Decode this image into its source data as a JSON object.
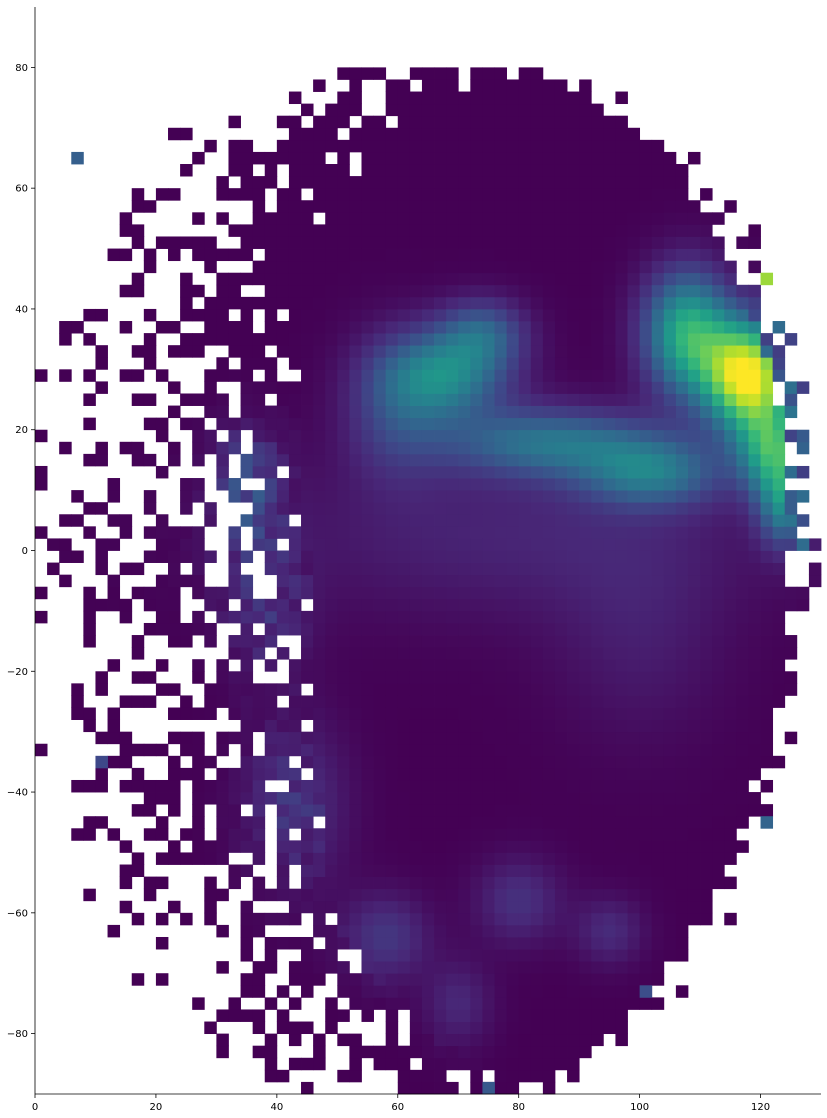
{
  "chart_data": {
    "type": "heatmap",
    "title": "",
    "xlabel": "",
    "ylabel": "",
    "colormap": "viridis",
    "colormap_stops": [
      "#440154",
      "#482878",
      "#3e4989",
      "#31688e",
      "#26828e",
      "#1f9e89",
      "#35b779",
      "#6ece58",
      "#b5de2b",
      "#fde725"
    ],
    "background": "#ffffff",
    "xlim": [
      0,
      130
    ],
    "ylim": [
      -90,
      90
    ],
    "bin_size": 2,
    "grid": false,
    "x_ticks": [
      0,
      20,
      40,
      60,
      80,
      100,
      120
    ],
    "x_tick_labels": [
      "0",
      "20",
      "40",
      "60",
      "80",
      "100",
      "120"
    ],
    "y_ticks": [
      80,
      60,
      40,
      20,
      0,
      -20,
      -40,
      -60,
      -80
    ],
    "y_tick_labels": [
      "80",
      "60",
      "40",
      "20",
      "0",
      "−20",
      "−40",
      "−60",
      "−80"
    ],
    "density_components": [
      {
        "x": 118,
        "y": 29,
        "sx": 5,
        "sy": 6,
        "weight": 1.0
      },
      {
        "x": 108,
        "y": 36,
        "sx": 5,
        "sy": 7,
        "weight": 0.62
      },
      {
        "x": 122,
        "y": 17,
        "sx": 4,
        "sy": 5,
        "weight": 0.55
      },
      {
        "x": 124,
        "y": 8,
        "sx": 3,
        "sy": 5,
        "weight": 0.42
      },
      {
        "x": 68,
        "y": 29,
        "sx": 7,
        "sy": 5,
        "weight": 0.42
      },
      {
        "x": 85,
        "y": 18,
        "sx": 12,
        "sy": 4,
        "weight": 0.36
      },
      {
        "x": 102,
        "y": 13,
        "sx": 8,
        "sy": 4,
        "weight": 0.36
      },
      {
        "x": 74,
        "y": 36,
        "sx": 5,
        "sy": 4,
        "weight": 0.28
      },
      {
        "x": 60,
        "y": 24,
        "sx": 6,
        "sy": 8,
        "weight": 0.2
      },
      {
        "x": 80,
        "y": 3,
        "sx": 30,
        "sy": 10,
        "weight": 0.1
      },
      {
        "x": 35,
        "y": 10,
        "sx": 4,
        "sy": 7,
        "weight": 0.22
      },
      {
        "x": 38,
        "y": -10,
        "sx": 5,
        "sy": 8,
        "weight": 0.12
      },
      {
        "x": 43,
        "y": -42,
        "sx": 6,
        "sy": 10,
        "weight": 0.14
      },
      {
        "x": 58,
        "y": -64,
        "sx": 5,
        "sy": 5,
        "weight": 0.16
      },
      {
        "x": 80,
        "y": -58,
        "sx": 5,
        "sy": 5,
        "weight": 0.14
      },
      {
        "x": 95,
        "y": -63,
        "sx": 4,
        "sy": 4,
        "weight": 0.12
      },
      {
        "x": 70,
        "y": -75,
        "sx": 4,
        "sy": 5,
        "weight": 0.11
      },
      {
        "x": 100,
        "y": -15,
        "sx": 10,
        "sy": 12,
        "weight": 0.07
      }
    ],
    "isolated_cells": [
      {
        "x": 7,
        "y": 65,
        "value": 0.3
      },
      {
        "x": 121,
        "y": 45,
        "value": 0.85
      },
      {
        "x": 121,
        "y": -45,
        "value": 0.32
      },
      {
        "x": 75,
        "y": -89,
        "value": 0.28
      },
      {
        "x": 10,
        "y": -36,
        "value": 0.22
      },
      {
        "x": 101,
        "y": -73,
        "value": 0.24
      },
      {
        "x": 127,
        "y": 0,
        "value": 0.35
      }
    ]
  }
}
